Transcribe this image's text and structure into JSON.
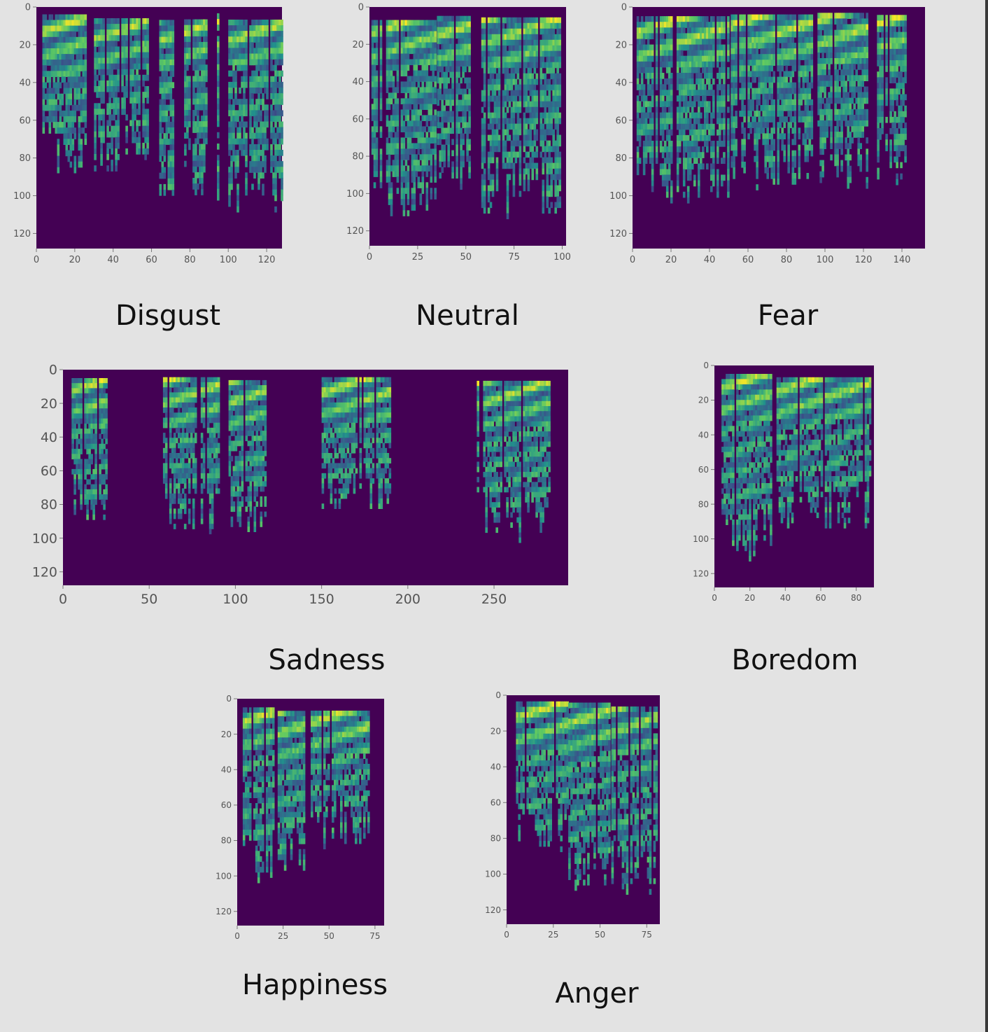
{
  "colors": {
    "background": "#e3e3e3",
    "plot_background": "#440154",
    "viridis": [
      "#440154",
      "#3b528b",
      "#21918c",
      "#5ec962",
      "#fde725"
    ]
  },
  "chart_data": [
    {
      "type": "heatmap",
      "colormap": "viridis",
      "label": "Disgust",
      "xlim": [
        0,
        128
      ],
      "ylim": [
        128,
        0
      ],
      "xticks": [
        0,
        20,
        40,
        60,
        80,
        100,
        120
      ],
      "yticks": [
        0,
        20,
        40,
        60,
        80,
        100,
        120
      ],
      "voiced_segments": [
        [
          2,
          25
        ],
        [
          30,
          58
        ],
        [
          64,
          71
        ],
        [
          77,
          90
        ],
        [
          93,
          96
        ],
        [
          100,
          128
        ]
      ]
    },
    {
      "type": "heatmap",
      "colormap": "viridis",
      "label": "Neutral",
      "xlim": [
        0,
        102
      ],
      "ylim": [
        128,
        0
      ],
      "xticks": [
        0,
        25,
        50,
        75,
        100
      ],
      "yticks": [
        0,
        20,
        40,
        60,
        80,
        100,
        120
      ],
      "voiced_segments": [
        [
          1,
          34
        ],
        [
          35,
          52
        ],
        [
          58,
          100
        ]
      ]
    },
    {
      "type": "heatmap",
      "colormap": "viridis",
      "label": "Fear",
      "xlim": [
        0,
        152
      ],
      "ylim": [
        128,
        0
      ],
      "xticks": [
        0,
        20,
        40,
        60,
        80,
        100,
        120,
        140
      ],
      "yticks": [
        0,
        20,
        40,
        60,
        80,
        100,
        120
      ],
      "voiced_segments": [
        [
          1,
          50
        ],
        [
          51,
          93
        ],
        [
          95,
          122
        ],
        [
          127,
          142
        ]
      ]
    },
    {
      "type": "heatmap",
      "colormap": "viridis",
      "label": "Sadness",
      "xlim": [
        0,
        293
      ],
      "ylim": [
        128,
        0
      ],
      "xticks": [
        0,
        50,
        100,
        150,
        200,
        250
      ],
      "yticks": [
        0,
        20,
        40,
        60,
        80,
        100,
        120
      ],
      "voiced_segments": [
        [
          5,
          26
        ],
        [
          58,
          90
        ],
        [
          96,
          118
        ],
        [
          150,
          190
        ],
        [
          240,
          282
        ]
      ]
    },
    {
      "type": "heatmap",
      "colormap": "viridis",
      "label": "Boredom",
      "xlim": [
        0,
        90
      ],
      "ylim": [
        128,
        0
      ],
      "xticks": [
        0,
        20,
        40,
        60,
        80
      ],
      "yticks": [
        0,
        20,
        40,
        60,
        80,
        100,
        120
      ],
      "voiced_segments": [
        [
          4,
          32
        ],
        [
          35,
          88
        ]
      ]
    },
    {
      "type": "heatmap",
      "colormap": "viridis",
      "label": "Happiness",
      "xlim": [
        0,
        80
      ],
      "ylim": [
        128,
        0
      ],
      "xticks": [
        0,
        25,
        50,
        75
      ],
      "yticks": [
        0,
        20,
        40,
        60,
        80,
        100,
        120
      ],
      "voiced_segments": [
        [
          3,
          19
        ],
        [
          22,
          38
        ],
        [
          40,
          71
        ]
      ]
    },
    {
      "type": "heatmap",
      "colormap": "viridis",
      "label": "Anger",
      "xlim": [
        0,
        82
      ],
      "ylim": [
        128,
        0
      ],
      "xticks": [
        0,
        25,
        50,
        75
      ],
      "yticks": [
        0,
        20,
        40,
        60,
        80,
        100,
        120
      ],
      "yticklabels": [
        "0",
        "20",
        "40",
        "60",
        "80",
        "100",
        "120"
      ],
      "voiced_segments": [
        [
          5,
          32
        ],
        [
          33,
          56
        ],
        [
          56,
          80
        ]
      ]
    }
  ]
}
